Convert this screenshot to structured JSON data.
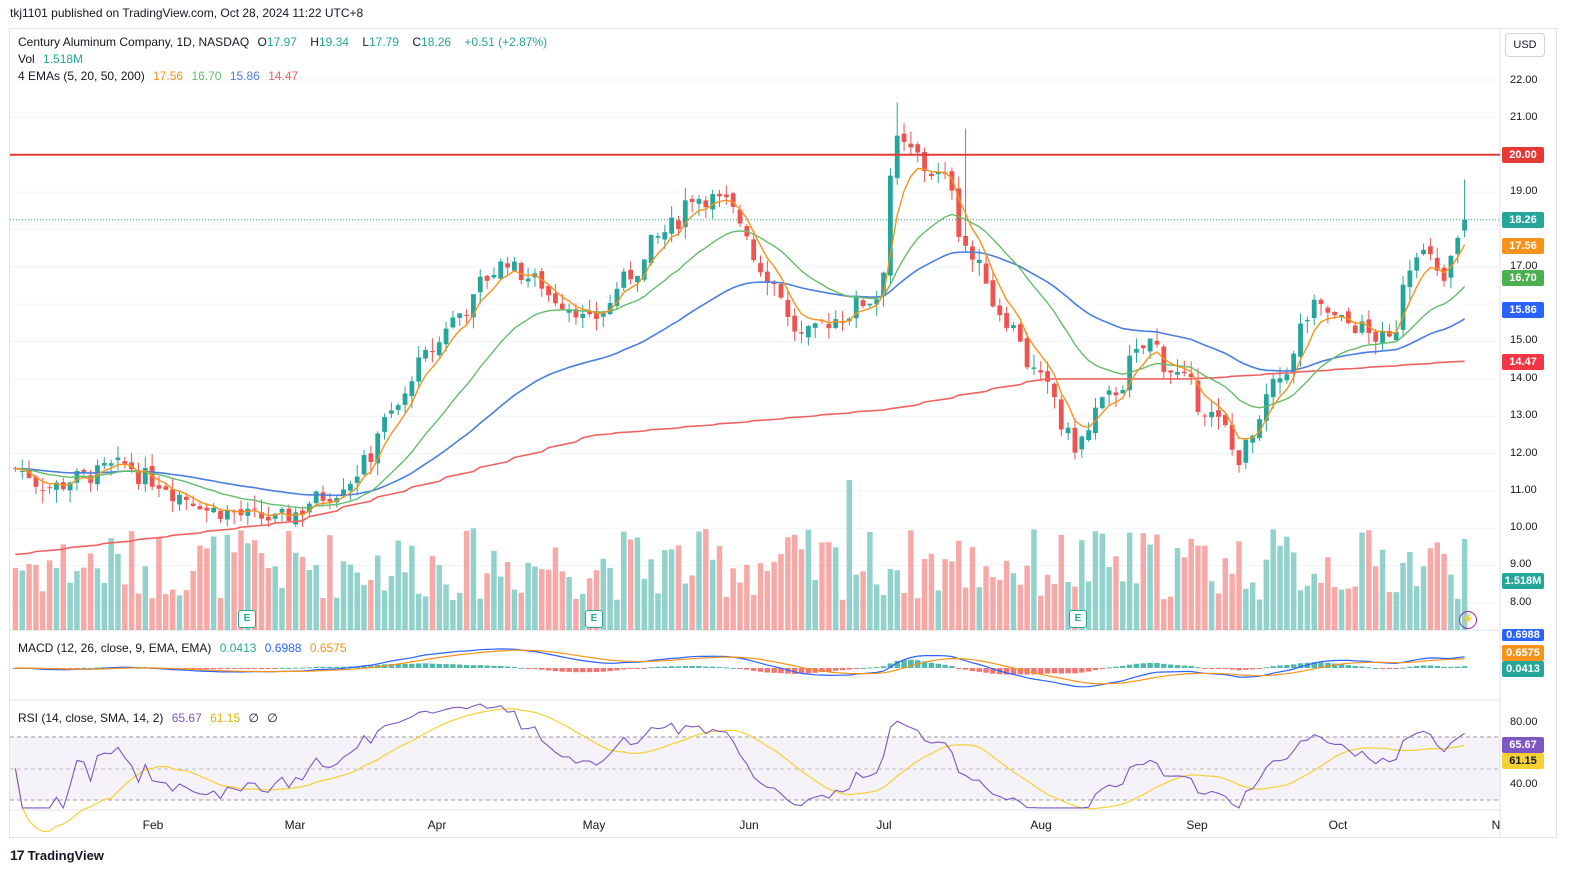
{
  "header": {
    "published": "tkj1101 published on TradingView.com, Oct 28, 2024 11:22 UTC+8"
  },
  "legend": {
    "title": "Century Aluminum Company, 1D, NASDAQ",
    "o_label": "O",
    "o": "17.97",
    "h_label": "H",
    "h": "19.34",
    "l_label": "L",
    "l": "17.79",
    "c_label": "C",
    "c": "18.26",
    "change": "+0.51 (+2.87%)",
    "vol_label": "Vol",
    "vol": "1.518M",
    "ema_label": "4 EMAs (5, 20, 50, 200)",
    "ema5": "17.56",
    "ema20": "16.70",
    "ema50": "15.86",
    "ema200": "14.47",
    "macd_label": "MACD (12, 26, close, 9, EMA, EMA)",
    "macd_hist": "0.0413",
    "macd": "0.6988",
    "macd_signal": "0.6575",
    "rsi_label": "RSI (14, close, SMA, 14, 2)",
    "rsi": "65.67",
    "rsi_ma": "61.15",
    "rsi_x1": "∅",
    "rsi_x2": "∅"
  },
  "currency": "USD",
  "footer": {
    "brand": "TradingView",
    "logo": "17"
  },
  "price_tags": {
    "resistance": "20.00",
    "close": "18.26",
    "ema5": "17.56",
    "ema20": "16.70",
    "ema50": "15.86",
    "ema200": "14.47",
    "vol": "1.518M",
    "macd": "0.6988",
    "signal": "0.6575",
    "hist": "0.0413",
    "rsi": "65.67",
    "rsi_ma": "61.15"
  },
  "colors": {
    "up": "#26a69a",
    "down": "#ef5350",
    "ema5": "#f7931a",
    "ema20": "#66bb6a",
    "ema50": "#4a7fe0",
    "ema200": "#f06262",
    "resistance": "#e53935",
    "rsi": "#7e57c2",
    "rsi_ma": "#f5d033"
  },
  "earnings_marker": "E",
  "chart_data": {
    "type": "candlestick",
    "title": "Century Aluminum Company, 1D, NASDAQ",
    "x_ticks": [
      "Feb",
      "Mar",
      "Apr",
      "May",
      "Jun",
      "Jul",
      "Aug",
      "Sep",
      "Oct",
      "N"
    ],
    "y_ticks": [
      "22.00",
      "21.00",
      "20.00",
      "19.00",
      "18.00",
      "17.00",
      "16.00",
      "15.00",
      "14.00",
      "13.00",
      "12.00",
      "11.00",
      "10.00",
      "9.00",
      "8.00"
    ],
    "rsi_ticks": [
      "80.00",
      "40.00"
    ],
    "ylim": [
      7.3,
      22.8
    ],
    "resistance_level": 20.0,
    "last_close": 18.26,
    "x_range": [
      "2024-01-03",
      "2024-11-01"
    ],
    "ohlc_key_points": [
      {
        "date": "2024-01-03",
        "close": 11.6
      },
      {
        "date": "2024-01-10",
        "close": 11.1
      },
      {
        "date": "2024-01-25",
        "close": 11.7
      },
      {
        "date": "2024-02-12",
        "close": 10.5
      },
      {
        "date": "2024-02-26",
        "close": 10.2
      },
      {
        "date": "2024-03-12",
        "close": 11.3
      },
      {
        "date": "2024-03-28",
        "close": 14.8
      },
      {
        "date": "2024-04-12",
        "close": 17.2
      },
      {
        "date": "2024-04-30",
        "close": 15.5
      },
      {
        "date": "2024-05-21",
        "close": 18.9
      },
      {
        "date": "2024-05-28",
        "close": 18.7
      },
      {
        "date": "2024-06-12",
        "close": 15.1
      },
      {
        "date": "2024-06-27",
        "close": 16.2
      },
      {
        "date": "2024-07-02",
        "close": 20.3
      },
      {
        "date": "2024-07-12",
        "close": 19.2
      },
      {
        "date": "2024-07-17",
        "close": 17.2
      },
      {
        "date": "2024-08-02",
        "close": 13.5
      },
      {
        "date": "2024-08-07",
        "close": 12.2
      },
      {
        "date": "2024-08-22",
        "close": 15.0
      },
      {
        "date": "2024-09-03",
        "close": 13.2
      },
      {
        "date": "2024-09-10",
        "close": 11.9
      },
      {
        "date": "2024-09-25",
        "close": 15.9
      },
      {
        "date": "2024-10-10",
        "close": 15.0
      },
      {
        "date": "2024-10-16",
        "close": 17.5
      },
      {
        "date": "2024-10-22",
        "close": 16.6
      },
      {
        "date": "2024-10-25",
        "close": 18.26
      }
    ],
    "ema200_path": [
      [
        "2024-01-03",
        9.3
      ],
      [
        "2024-03-01",
        10.2
      ],
      [
        "2024-05-01",
        12.5
      ],
      [
        "2024-07-01",
        13.2
      ],
      [
        "2024-08-01",
        14.0
      ],
      [
        "2024-09-01",
        14.0
      ],
      [
        "2024-10-25",
        14.47
      ]
    ],
    "volume_range": [
      0,
      2.5
    ]
  }
}
